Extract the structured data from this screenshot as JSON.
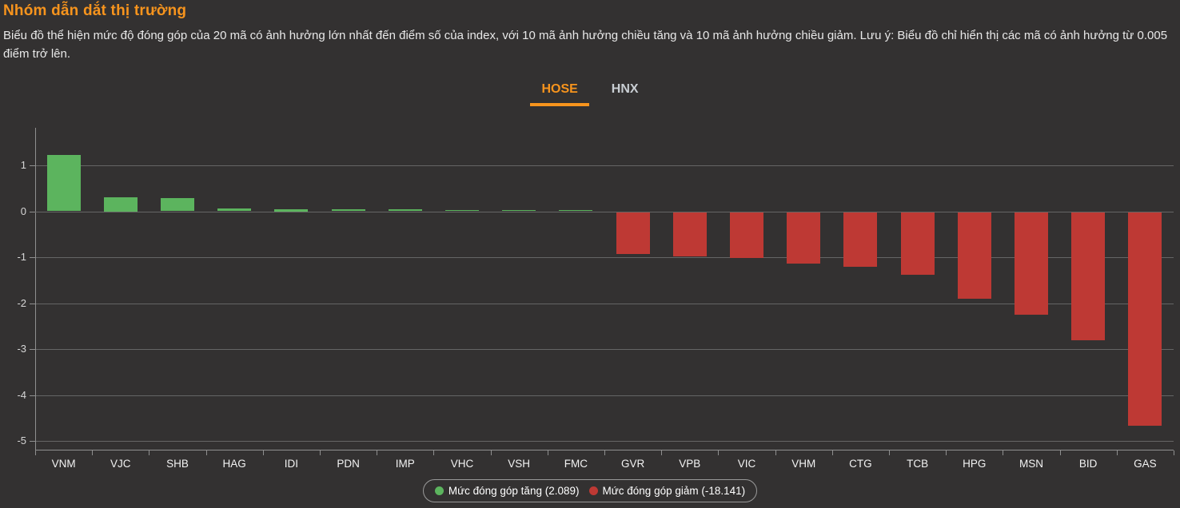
{
  "header": {
    "title": "Nhóm dẫn dắt thị trường",
    "description": "Biểu đồ thể hiện mức độ đóng góp của 20 mã có ảnh hưởng lớn nhất đến điểm số của index, với 10 mã ảnh hưởng chiều tăng và 10 mã ảnh hưởng chiều giảm. Lưu ý: Biểu đồ chỉ hiển thị các mã có ảnh hưởng từ 0.005 điểm trở lên."
  },
  "tabs": [
    {
      "label": "HOSE",
      "active": true
    },
    {
      "label": "HNX",
      "active": false
    }
  ],
  "legend": [
    {
      "label": "Mức đóng góp tăng (2.089)",
      "color": "#5cb45e"
    },
    {
      "label": "Mức đóng góp giảm (-18.141)",
      "color": "#be3934"
    }
  ],
  "colors": {
    "accent": "#f7941d",
    "background": "#333131",
    "text": "#e8e8e8",
    "grid": "#656565",
    "axis": "#8f8f8f",
    "positive": "#5cb45e",
    "negative": "#be3934",
    "tab_inactive": "#c9ced3",
    "legend_border": "#999999"
  },
  "chart_data": {
    "type": "bar",
    "title": "Nhóm dẫn dắt thị trường",
    "xlabel": "",
    "ylabel": "",
    "categories": [
      "VNM",
      "VJC",
      "SHB",
      "HAG",
      "IDI",
      "PDN",
      "IMP",
      "VHC",
      "VSH",
      "FMC",
      "GVR",
      "VPB",
      "VIC",
      "VHM",
      "CTG",
      "TCB",
      "HPG",
      "MSN",
      "BID",
      "GAS"
    ],
    "values": [
      1.23,
      0.3,
      0.28,
      0.06,
      0.05,
      0.04,
      0.04,
      0.03,
      0.03,
      0.03,
      -0.92,
      -0.96,
      -1.0,
      -1.13,
      -1.19,
      -1.37,
      -1.89,
      -2.24,
      -2.79,
      -4.65
    ],
    "positive_total": 2.089,
    "negative_total": -18.141,
    "positive_color": "#5cb45e",
    "negative_color": "#be3934",
    "yticks": [
      1,
      0,
      -1,
      -2,
      -3,
      -4,
      -5
    ],
    "ylim": [
      -5.2,
      1.85
    ],
    "grid": true,
    "legend_position": "bottom"
  }
}
